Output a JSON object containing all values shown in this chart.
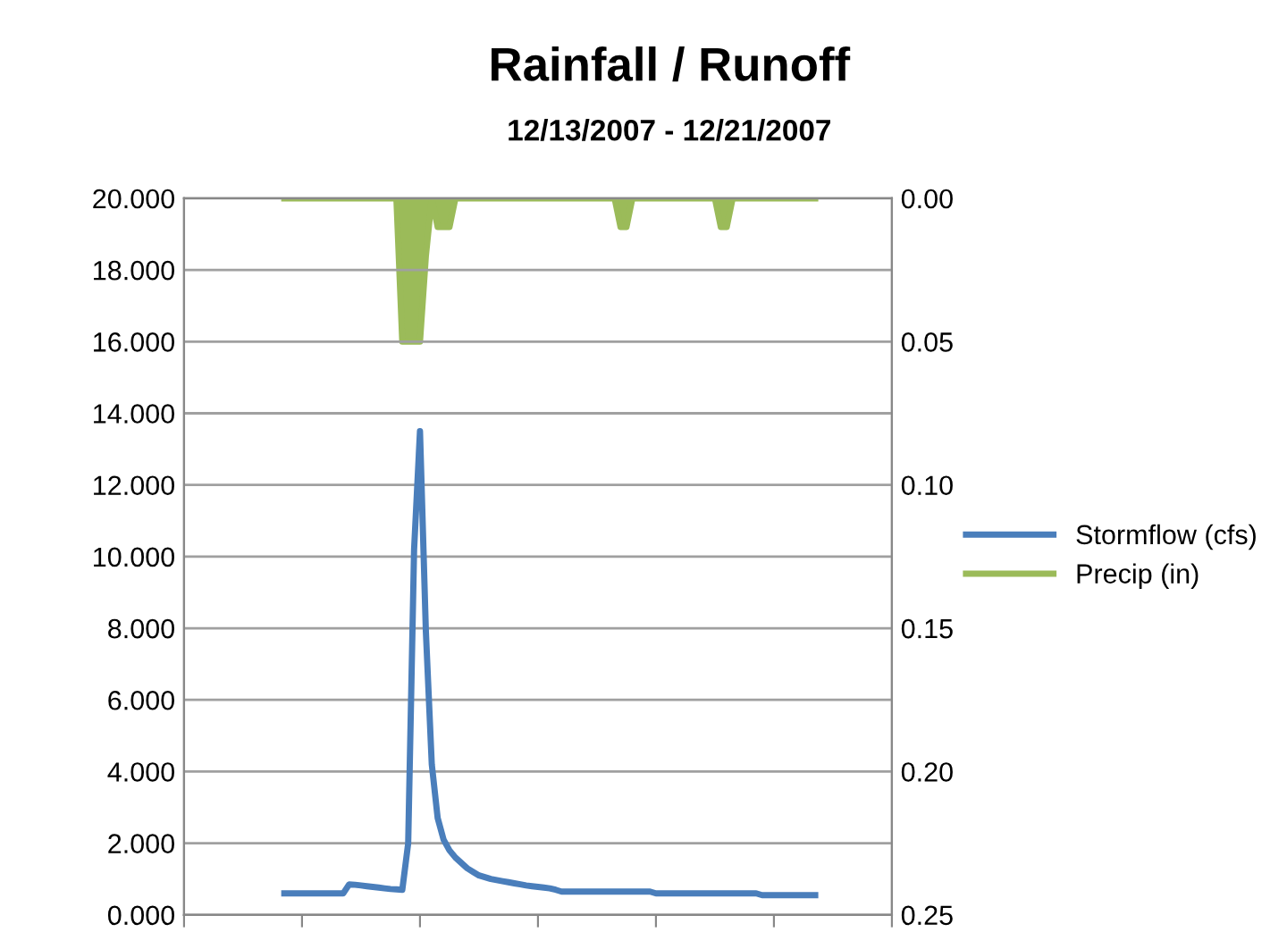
{
  "chart_data": {
    "type": "line",
    "title": "Rainfall / Runoff",
    "subtitle": "12/13/2007 - 12/21/2007",
    "categories": [
      null,
      null,
      null,
      null,
      null,
      null,
      null,
      null,
      null,
      null,
      null,
      null,
      null,
      null,
      null,
      null,
      null,
      null,
      null,
      null,
      null,
      null,
      null,
      null,
      null,
      null,
      null,
      null,
      null,
      null,
      null,
      null,
      null,
      null,
      null,
      null,
      null,
      null,
      null,
      null,
      null,
      null,
      null,
      null,
      null,
      null,
      null,
      null,
      null,
      null,
      null,
      null,
      null,
      null,
      null,
      null,
      null,
      null,
      null,
      null,
      null,
      null,
      null,
      null,
      null,
      null,
      null,
      null,
      null,
      null,
      null,
      null,
      null,
      null,
      null,
      null,
      null,
      null,
      null,
      null,
      null,
      null,
      null,
      null,
      null,
      null,
      null,
      null,
      null,
      null,
      null
    ],
    "ylim": [
      0,
      20
    ],
    "yticks": [
      {
        "value": 0,
        "label": "0.000"
      },
      {
        "value": 2,
        "label": "2.000"
      },
      {
        "value": 4,
        "label": "4.000"
      },
      {
        "value": 6,
        "label": "6.000"
      },
      {
        "value": 8,
        "label": "8.000"
      },
      {
        "value": 10,
        "label": "10.000"
      },
      {
        "value": 12,
        "label": "12.000"
      },
      {
        "value": 14,
        "label": "14.000"
      },
      {
        "value": 16,
        "label": "16.000"
      },
      {
        "value": 18,
        "label": "18.000"
      },
      {
        "value": 20,
        "label": "20.000"
      }
    ],
    "y2lim": [
      0.25,
      0
    ],
    "y2ticks": [
      {
        "value": 0,
        "label": "0.00"
      },
      {
        "value": 0.05,
        "label": "0.05"
      },
      {
        "value": 0.1,
        "label": "0.10"
      },
      {
        "value": 0.15,
        "label": "0.15"
      },
      {
        "value": 0.2,
        "label": "0.20"
      },
      {
        "value": 0.25,
        "label": "0.25"
      }
    ],
    "grid": "y",
    "legend": "right",
    "marker": "none",
    "line_style": "solid",
    "series": [
      {
        "name": "Stormflow (cfs)",
        "color": "#4a7ebb",
        "values": [
          0.6,
          0.6,
          0.6,
          0.6,
          0.6,
          0.6,
          0.6,
          0.6,
          0.6,
          0.6,
          0.6,
          0.85,
          0.84,
          0.82,
          0.8,
          0.78,
          0.76,
          0.74,
          0.72,
          0.71,
          0.7,
          2.0,
          10.2,
          13.5,
          7.9,
          4.2,
          2.7,
          2.1,
          1.8,
          1.6,
          1.45,
          1.3,
          1.2,
          1.1,
          1.05,
          1.0,
          0.97,
          0.94,
          0.91,
          0.88,
          0.85,
          0.82,
          0.8,
          0.78,
          0.76,
          0.74,
          0.7,
          0.65,
          0.65,
          0.65,
          0.65,
          0.65,
          0.65,
          0.65,
          0.65,
          0.65,
          0.65,
          0.65,
          0.65,
          0.65,
          0.65,
          0.65,
          0.65,
          0.6,
          0.6,
          0.6,
          0.6,
          0.6,
          0.6,
          0.6,
          0.6,
          0.6,
          0.6,
          0.6,
          0.6,
          0.6,
          0.6,
          0.6,
          0.6,
          0.6,
          0.6,
          0.55,
          0.55,
          0.55,
          0.55,
          0.55,
          0.55,
          0.55,
          0.55,
          0.55,
          0.55
        ]
      },
      {
        "name": "Precip (in)",
        "color": "#9bbb59",
        "type": "area",
        "axis": "y2",
        "values": [
          0,
          0,
          0,
          0,
          0,
          0,
          0,
          0,
          0,
          0,
          0,
          0,
          0,
          0,
          0,
          0,
          0,
          0,
          0,
          0,
          0.05,
          0.05,
          0.05,
          0.05,
          0.02,
          0,
          0.01,
          0.01,
          0.01,
          0,
          0,
          0,
          0,
          0,
          0,
          0,
          0,
          0,
          0,
          0,
          0,
          0,
          0,
          0,
          0,
          0,
          0,
          0,
          0,
          0,
          0,
          0,
          0,
          0,
          0,
          0,
          0,
          0.01,
          0.01,
          0,
          0,
          0,
          0,
          0,
          0,
          0,
          0,
          0,
          0,
          0,
          0,
          0,
          0,
          0,
          0.01,
          0.01,
          0,
          0,
          0,
          0,
          0,
          0,
          0,
          0,
          0,
          0,
          0,
          0,
          0,
          0,
          0
        ]
      }
    ]
  }
}
